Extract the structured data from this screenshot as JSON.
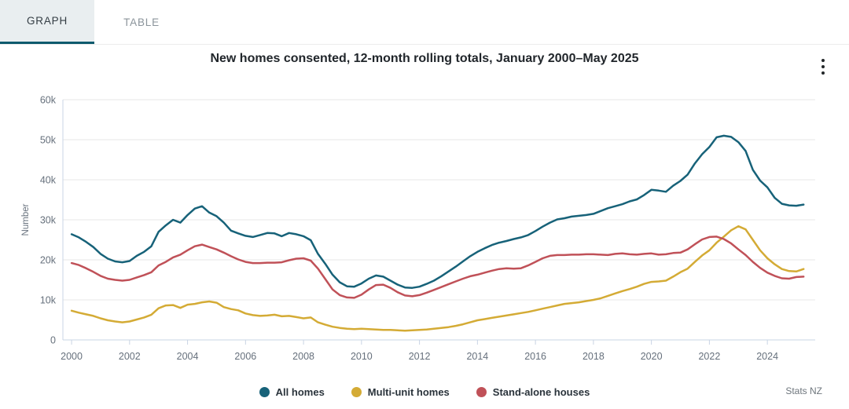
{
  "tabs": [
    {
      "label": "GRAPH",
      "active": true
    },
    {
      "label": "TABLE",
      "active": false
    }
  ],
  "title": "New homes consented, 12-month rolling totals, January 2000–May 2025",
  "attribution": "Stats NZ",
  "menu_icon": "kebab-menu-icon",
  "colors": {
    "all_homes": "#176279",
    "multi_unit": "#d4ab35",
    "stand_alone": "#c05158",
    "active_tab_underline": "#0d5a6d",
    "axis_line": "#c9d4e4",
    "gridline": "#e7e7e7",
    "tick_text": "#66707c"
  },
  "chart_data": {
    "type": "line",
    "title": "New homes consented, 12-month rolling totals, January 2000–May 2025",
    "xlabel": "",
    "ylabel": "Number",
    "values_unit": "thousands of new homes consented (12-month rolling total)",
    "x_start": 2000.0,
    "x_step_years": 0.25,
    "x_end": 2025.25,
    "x_range": [
      1999.7,
      2025.65
    ],
    "ylim": [
      0,
      60000
    ],
    "y_tick_labels": [
      "0",
      "10k",
      "20k",
      "30k",
      "40k",
      "50k",
      "60k"
    ],
    "x_ticks": [
      2000,
      2002,
      2004,
      2006,
      2008,
      2010,
      2012,
      2014,
      2016,
      2018,
      2020,
      2022,
      2024
    ],
    "grid": true,
    "legend_position": "bottom",
    "series": [
      {
        "name": "All homes",
        "color": "#176279",
        "values": [
          26.4,
          25.6,
          24.5,
          23.2,
          21.5,
          20.3,
          19.6,
          19.4,
          19.7,
          21.0,
          22.0,
          23.4,
          27.0,
          28.6,
          30.0,
          29.3,
          31.2,
          32.8,
          33.4,
          31.8,
          30.9,
          29.3,
          27.3,
          26.6,
          26.0,
          25.7,
          26.2,
          26.7,
          26.6,
          25.9,
          26.7,
          26.4,
          25.9,
          24.9,
          21.5,
          19.0,
          16.3,
          14.4,
          13.4,
          13.3,
          14.1,
          15.3,
          16.1,
          15.8,
          14.8,
          13.8,
          13.1,
          13.0,
          13.3,
          14.0,
          14.8,
          15.9,
          17.1,
          18.3,
          19.6,
          20.9,
          22.0,
          22.9,
          23.7,
          24.3,
          24.7,
          25.2,
          25.6,
          26.2,
          27.2,
          28.3,
          29.3,
          30.1,
          30.4,
          30.8,
          31.0,
          31.2,
          31.5,
          32.2,
          32.9,
          33.4,
          33.9,
          34.6,
          35.1,
          36.2,
          37.5,
          37.3,
          37.0,
          38.5,
          39.7,
          41.3,
          44.1,
          46.4,
          48.2,
          50.6,
          51.0,
          50.7,
          49.4,
          47.2,
          42.5,
          39.8,
          38.1,
          35.5,
          34.0,
          33.6,
          33.5,
          33.8
        ]
      },
      {
        "name": "Multi-unit homes",
        "color": "#d4ab35",
        "values": [
          7.3,
          6.8,
          6.4,
          6.0,
          5.4,
          4.9,
          4.6,
          4.4,
          4.6,
          5.1,
          5.6,
          6.3,
          7.9,
          8.6,
          8.7,
          8.0,
          8.8,
          9.0,
          9.4,
          9.6,
          9.3,
          8.2,
          7.7,
          7.4,
          6.6,
          6.2,
          6.0,
          6.1,
          6.3,
          5.9,
          6.0,
          5.7,
          5.4,
          5.6,
          4.4,
          3.8,
          3.3,
          3.0,
          2.8,
          2.7,
          2.8,
          2.7,
          2.6,
          2.5,
          2.5,
          2.4,
          2.3,
          2.4,
          2.5,
          2.6,
          2.8,
          3.0,
          3.2,
          3.5,
          3.9,
          4.4,
          4.9,
          5.2,
          5.5,
          5.8,
          6.1,
          6.4,
          6.7,
          7.0,
          7.4,
          7.8,
          8.2,
          8.6,
          9.0,
          9.2,
          9.4,
          9.7,
          10.0,
          10.4,
          11.0,
          11.6,
          12.2,
          12.7,
          13.3,
          14.0,
          14.5,
          14.6,
          14.8,
          15.8,
          16.9,
          17.8,
          19.5,
          21.1,
          22.4,
          24.3,
          25.8,
          27.4,
          28.4,
          27.6,
          25.0,
          22.4,
          20.4,
          18.9,
          17.7,
          17.2,
          17.1,
          17.7
        ]
      },
      {
        "name": "Stand-alone houses",
        "color": "#c05158",
        "values": [
          19.2,
          18.7,
          17.9,
          17.0,
          16.0,
          15.3,
          15.0,
          14.8,
          15.0,
          15.6,
          16.2,
          16.9,
          18.6,
          19.5,
          20.6,
          21.3,
          22.4,
          23.4,
          23.8,
          23.2,
          22.6,
          21.8,
          20.9,
          20.1,
          19.5,
          19.2,
          19.2,
          19.3,
          19.3,
          19.4,
          19.9,
          20.3,
          20.4,
          19.8,
          17.8,
          15.2,
          12.6,
          11.2,
          10.6,
          10.5,
          11.3,
          12.6,
          13.7,
          13.8,
          13.0,
          11.9,
          11.1,
          10.9,
          11.2,
          11.8,
          12.5,
          13.2,
          13.9,
          14.6,
          15.3,
          15.9,
          16.3,
          16.8,
          17.3,
          17.7,
          17.9,
          17.8,
          17.9,
          18.6,
          19.5,
          20.4,
          21.0,
          21.2,
          21.2,
          21.3,
          21.3,
          21.4,
          21.4,
          21.3,
          21.2,
          21.5,
          21.6,
          21.4,
          21.3,
          21.5,
          21.6,
          21.3,
          21.4,
          21.7,
          21.8,
          22.6,
          23.9,
          25.1,
          25.7,
          25.8,
          25.2,
          24.1,
          22.6,
          21.2,
          19.5,
          18.0,
          16.8,
          16.0,
          15.4,
          15.3,
          15.7,
          15.8
        ]
      }
    ]
  }
}
